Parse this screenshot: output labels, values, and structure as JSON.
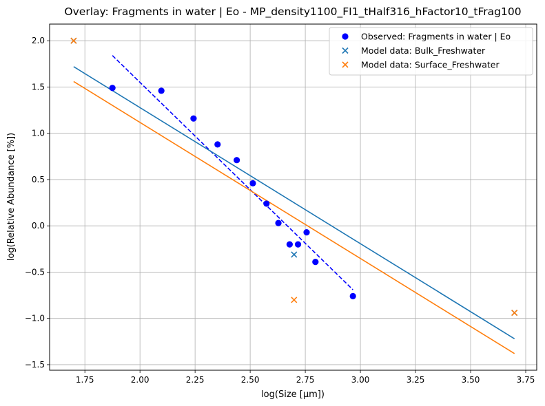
{
  "chart_data": {
    "type": "scatter",
    "title": "Overlay: Fragments in water | Eo - MP_density1100_FI1_tHalf316_hFactor10_tFrag100",
    "xlabel": "log(Size [µm])",
    "ylabel": "log(Relative Abundance [%])",
    "xlim": [
      1.59,
      3.8
    ],
    "ylim": [
      -1.56,
      2.18
    ],
    "xticks": [
      1.75,
      2.0,
      2.25,
      2.5,
      2.75,
      3.0,
      3.25,
      3.5,
      3.75
    ],
    "xtick_labels": [
      "1.75",
      "2.00",
      "2.25",
      "2.50",
      "2.75",
      "3.00",
      "3.25",
      "3.50",
      "3.75"
    ],
    "yticks": [
      -1.5,
      -1.0,
      -0.5,
      0.0,
      0.5,
      1.0,
      1.5,
      2.0
    ],
    "ytick_labels": [
      "−1.5",
      "−1.0",
      "−0.5",
      "0.0",
      "0.5",
      "1.0",
      "1.5",
      "2.0"
    ],
    "grid": true,
    "legend_position": "top-right",
    "colors": {
      "observed": "#0000ff",
      "bulk": "#1f77b4",
      "surface": "#ff7f0e"
    },
    "series": [
      {
        "name": "Observed: Fragments in water | Eo",
        "kind": "scatter-circle",
        "x": [
          1.875,
          2.097,
          2.243,
          2.352,
          2.439,
          2.512,
          2.574,
          2.628,
          2.679,
          2.717,
          2.756,
          2.796,
          2.966
        ],
        "y": [
          1.49,
          1.46,
          1.16,
          0.88,
          0.71,
          0.46,
          0.24,
          0.03,
          -0.2,
          -0.2,
          -0.07,
          -0.39,
          -0.76
        ]
      },
      {
        "name": "Model data: Bulk_Freshwater",
        "kind": "scatter-x",
        "x": [
          1.699,
          2.699,
          3.699
        ],
        "y": [
          2.0,
          -0.31,
          -0.94
        ]
      },
      {
        "name": "Model data: Surface_Freshwater",
        "kind": "scatter-x",
        "x": [
          1.699,
          2.699,
          3.699
        ],
        "y": [
          2.0,
          -0.8,
          -0.94
        ]
      }
    ],
    "fit_lines": [
      {
        "series": "observed",
        "style": "dashed",
        "x": [
          1.875,
          2.966
        ],
        "y": [
          1.84,
          -0.69
        ]
      },
      {
        "series": "bulk",
        "style": "solid",
        "x": [
          1.699,
          3.699
        ],
        "y": [
          1.72,
          -1.22
        ]
      },
      {
        "series": "surface",
        "style": "solid",
        "x": [
          1.699,
          3.699
        ],
        "y": [
          1.56,
          -1.38
        ]
      }
    ]
  }
}
